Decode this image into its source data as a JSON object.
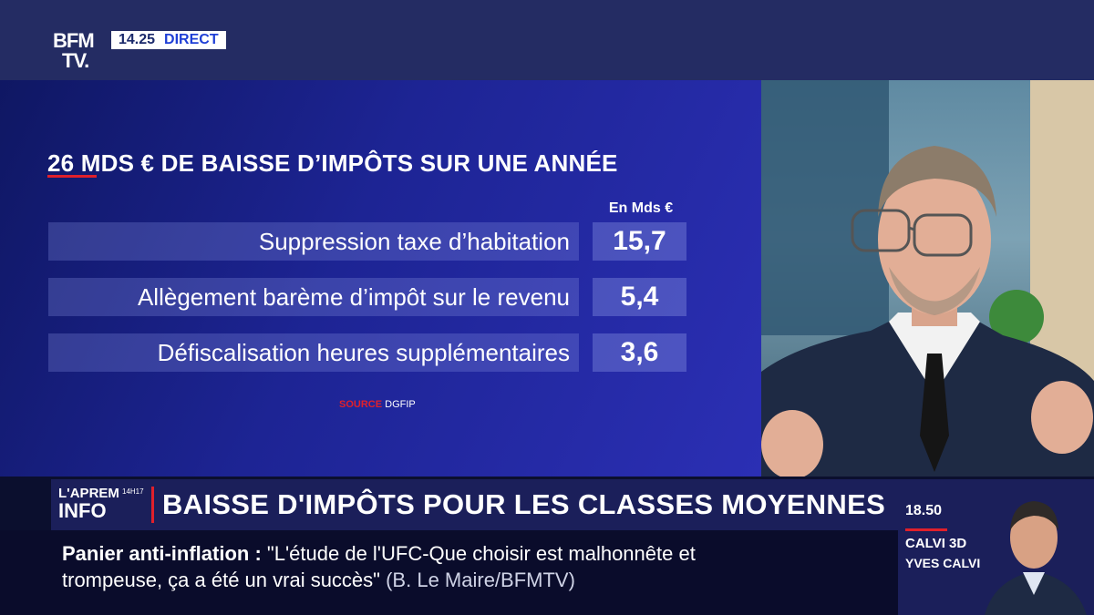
{
  "channel": {
    "logo_line1": "BFM",
    "logo_line2": "TV.",
    "time": "14.25",
    "live_label": "DIRECT"
  },
  "graphic": {
    "title": "26 MDS € DE BAISSE D’IMPÔTS SUR UNE ANNÉE",
    "unit_label": "En Mds €",
    "rows": [
      {
        "label": "Suppression taxe d’habitation",
        "value": "15,7"
      },
      {
        "label": "Allègement barème d’impôt sur le revenu",
        "value": "5,4"
      },
      {
        "label": "Défiscalisation heures supplémentaires",
        "value": "3,6"
      }
    ],
    "source_prefix": "SOURCE",
    "source_name": "DGFIP"
  },
  "lower_third": {
    "show_logo_line1": "L'APREM",
    "show_logo_line2": "INFO",
    "show_logo_time": "14H17",
    "headline": "BAISSE D'IMPÔTS POUR LES CLASSES MOYENNES"
  },
  "ticker": {
    "topic": "Panier anti-inflation :",
    "quote_line1": "\"L'étude de l'UFC-Que choisir est malhonnête et",
    "quote_line2": "trompeuse, ça a été un vrai succès\"",
    "attribution": "(B. Le Maire/BFMTV)"
  },
  "next_program": {
    "time": "18.50",
    "show": "CALVI 3D",
    "host": "YVES CALVI"
  },
  "colors": {
    "accent_red": "#e0202b",
    "panel_blue": "#1d2494",
    "bar_navy": "#1b1f5a"
  }
}
